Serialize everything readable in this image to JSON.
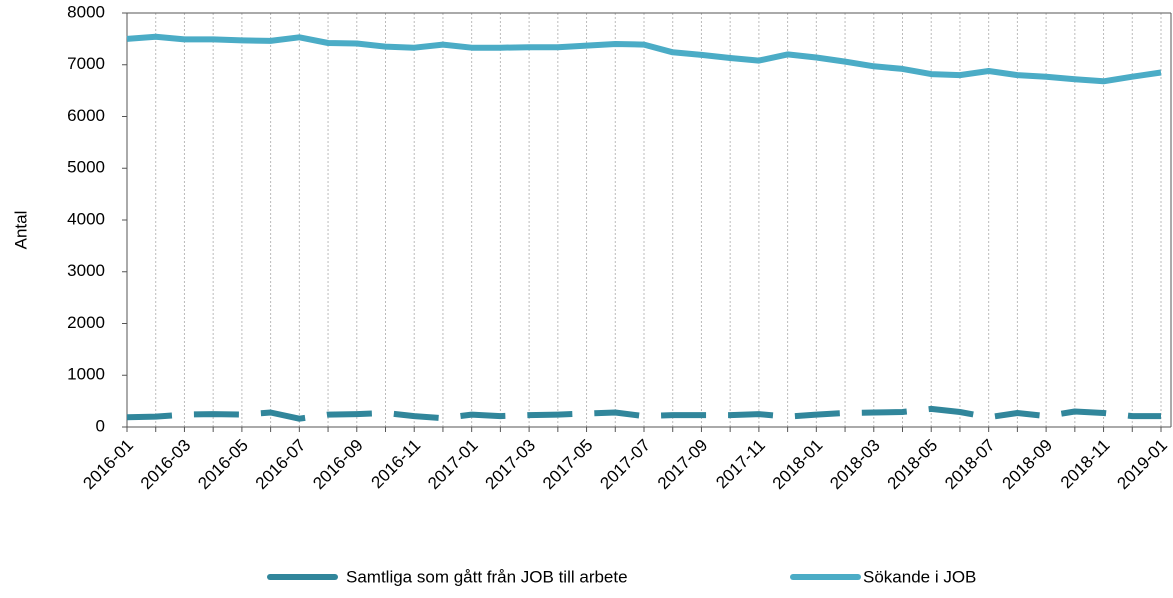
{
  "chart_data": {
    "type": "line",
    "y_label": "Antal",
    "categories": [
      "2016-01",
      null,
      "2016-03",
      null,
      "2016-05",
      null,
      "2016-07",
      null,
      "2016-09",
      null,
      "2016-11",
      null,
      "2017-01",
      null,
      "2017-03",
      null,
      "2017-05",
      null,
      "2017-07",
      null,
      "2017-09",
      null,
      "2017-11",
      null,
      "2018-01",
      null,
      "2018-03",
      null,
      "2018-05",
      null,
      "2018-07",
      null,
      "2018-09",
      null,
      "2018-11",
      null,
      "2019-01"
    ],
    "series": [
      {
        "name": "Samtliga som gått från JOB till arbete",
        "color": "#31869b",
        "dashed": true,
        "values": [
          190,
          200,
          240,
          250,
          240,
          280,
          160,
          240,
          250,
          270,
          210,
          170,
          240,
          210,
          230,
          240,
          260,
          280,
          210,
          230,
          230,
          230,
          250,
          200,
          240,
          270,
          280,
          290,
          350,
          290,
          190,
          270,
          210,
          300,
          270,
          210,
          210
        ]
      },
      {
        "name": "Sökande i JOB",
        "color": "#4bacc6",
        "dashed": false,
        "values": [
          7500,
          7540,
          7490,
          7490,
          7470,
          7460,
          7530,
          7420,
          7410,
          7350,
          7330,
          7390,
          7330,
          7330,
          7340,
          7340,
          7370,
          7400,
          7390,
          7240,
          7190,
          7130,
          7080,
          7200,
          7140,
          7060,
          6970,
          6920,
          6820,
          6800,
          6880,
          6800,
          6770,
          6720,
          6680,
          6770,
          6850
        ]
      }
    ],
    "ylim": [
      0,
      8000
    ],
    "yticks": [
      0,
      1000,
      2000,
      3000,
      4000,
      5000,
      6000,
      7000,
      8000
    ],
    "grid": true
  }
}
